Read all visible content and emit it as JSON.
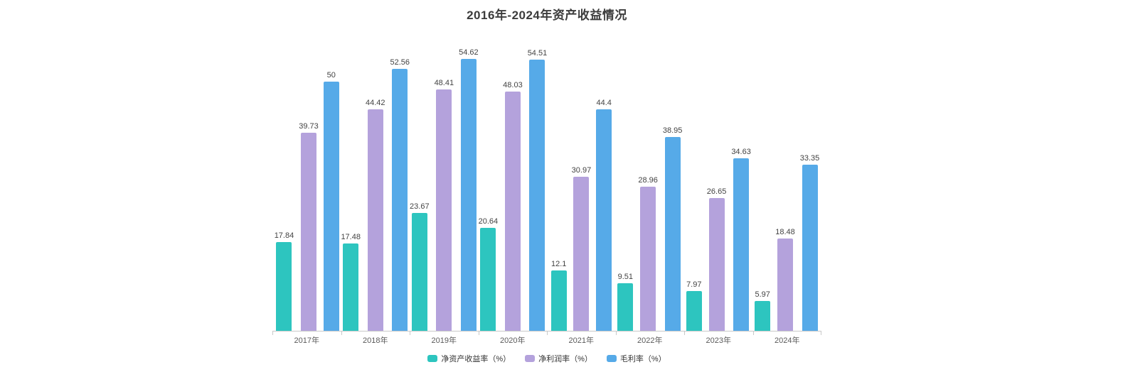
{
  "page": {
    "background": "#ffffff"
  },
  "chart_data": {
    "type": "bar",
    "title": "2016年-2024年资产收益情况",
    "categories": [
      "2017年",
      "2018年",
      "2019年",
      "2020年",
      "2021年",
      "2022年",
      "2023年",
      "2024年"
    ],
    "series": [
      {
        "name": "净资产收益率（%）",
        "color": "#2dc5bf",
        "values": [
          17.84,
          17.48,
          23.67,
          20.64,
          12.1,
          9.51,
          7.97,
          5.97
        ]
      },
      {
        "name": "净利润率（%）",
        "color": "#b4a2dc",
        "values": [
          39.73,
          44.42,
          48.41,
          48.03,
          30.97,
          28.96,
          26.65,
          18.48
        ]
      },
      {
        "name": "毛利率（%）",
        "color": "#56aae8",
        "values": [
          50,
          52.56,
          54.62,
          54.51,
          44.4,
          38.95,
          34.63,
          33.35
        ]
      }
    ],
    "xlabel": "",
    "ylabel": "",
    "ylim": [
      0,
      60
    ],
    "grid": false,
    "value_labels": true,
    "legend_position": "bottom-center",
    "axis_color": "#c9c9c9"
  }
}
